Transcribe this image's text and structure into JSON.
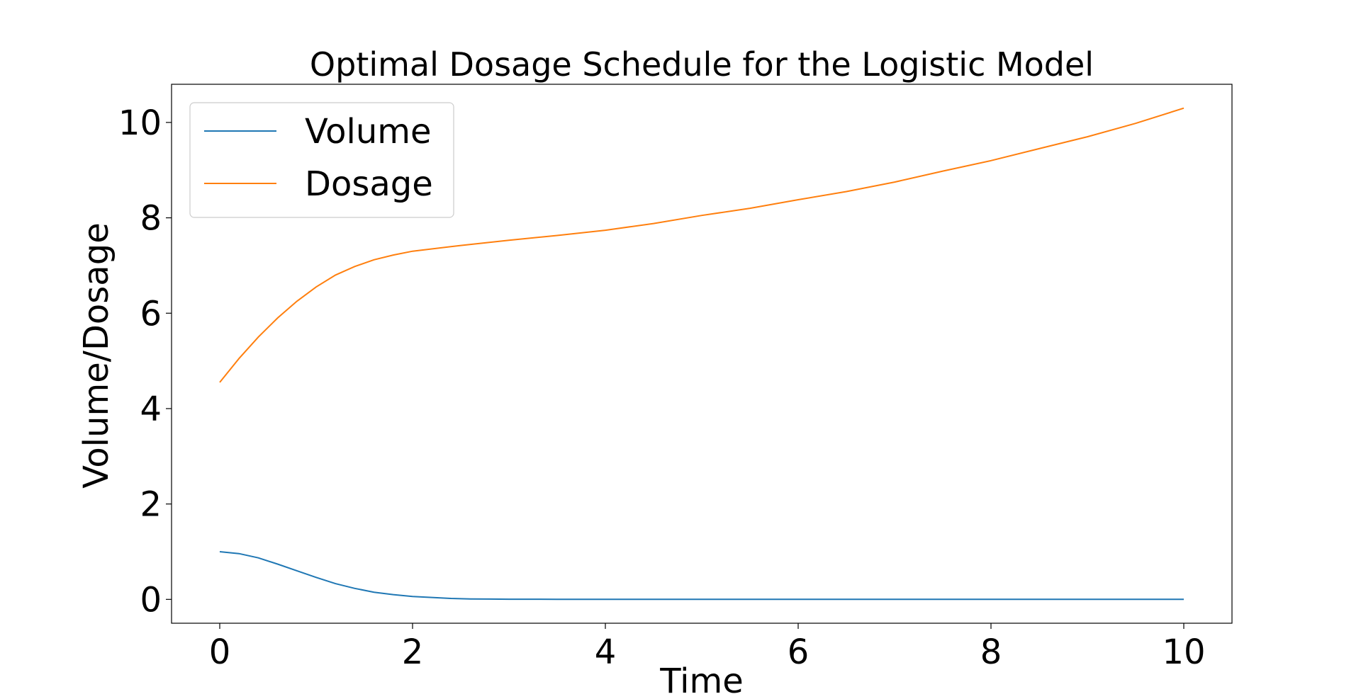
{
  "chart_data": {
    "type": "line",
    "title": "Optimal Dosage Schedule for the Logistic Model",
    "xlabel": "Time",
    "ylabel": "Volume/Dosage",
    "xlim": [
      -0.5,
      10.5
    ],
    "ylim": [
      -0.5,
      10.8
    ],
    "xticks": [
      0,
      2,
      4,
      6,
      8,
      10
    ],
    "yticks": [
      0,
      2,
      4,
      6,
      8,
      10
    ],
    "grid": false,
    "legend_position": "top-left",
    "series": [
      {
        "name": "Volume",
        "color": "#1f77b4",
        "x": [
          0,
          0.2,
          0.4,
          0.6,
          0.8,
          1.0,
          1.2,
          1.4,
          1.6,
          1.8,
          2.0,
          2.2,
          2.4,
          2.6,
          2.8,
          3.0,
          3.5,
          4,
          5,
          6,
          7,
          8,
          9,
          10
        ],
        "y": [
          1.0,
          0.96,
          0.87,
          0.74,
          0.6,
          0.46,
          0.33,
          0.23,
          0.15,
          0.1,
          0.06,
          0.04,
          0.02,
          0.01,
          0.007,
          0.004,
          0.002,
          0.001,
          0,
          0,
          0,
          0,
          0,
          0
        ]
      },
      {
        "name": "Dosage",
        "color": "#ff7f0e",
        "x": [
          0,
          0.2,
          0.4,
          0.6,
          0.8,
          1.0,
          1.2,
          1.4,
          1.6,
          1.8,
          2.0,
          2.5,
          3.0,
          3.5,
          4.0,
          4.5,
          5.0,
          5.5,
          6.0,
          6.5,
          7.0,
          7.5,
          8.0,
          8.5,
          9.0,
          9.5,
          10.0
        ],
        "y": [
          4.55,
          5.05,
          5.5,
          5.9,
          6.25,
          6.55,
          6.8,
          6.98,
          7.12,
          7.22,
          7.3,
          7.42,
          7.53,
          7.63,
          7.74,
          7.88,
          8.05,
          8.2,
          8.38,
          8.55,
          8.75,
          8.98,
          9.2,
          9.45,
          9.7,
          9.98,
          10.3
        ]
      }
    ]
  }
}
